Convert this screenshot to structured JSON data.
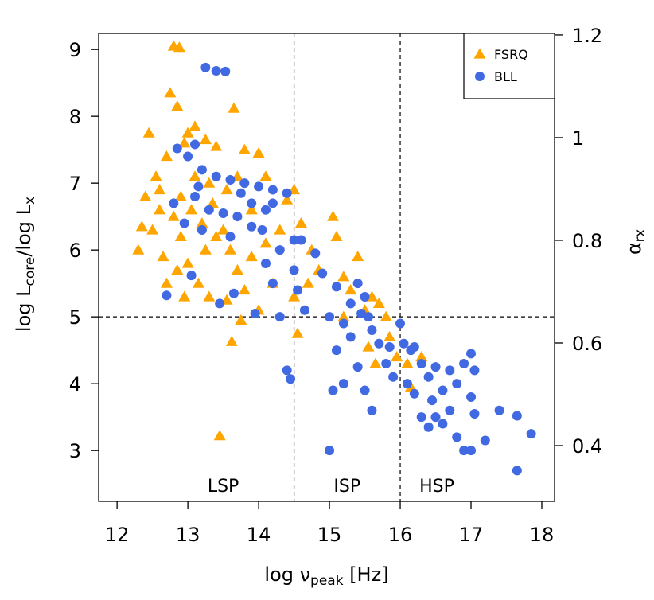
{
  "chart_data": {
    "type": "scatter",
    "xlabel": [
      "log ν",
      "peak",
      " [Hz]"
    ],
    "ylabel": [
      "log L",
      "core",
      "/log L",
      "x"
    ],
    "y2label": [
      "α",
      "rx"
    ],
    "xlim": [
      11.74,
      18.18
    ],
    "ylim": [
      2.24,
      9.24
    ],
    "y2lim": [
      0.2915,
      1.203
    ],
    "xticks": [
      12,
      13,
      14,
      15,
      16,
      17,
      18
    ],
    "yticks": [
      3,
      4,
      5,
      6,
      7,
      8,
      9
    ],
    "y2ticks": [
      0.4,
      0.6,
      0.8,
      1,
      1.2
    ],
    "vlines": [
      14.5,
      16
    ],
    "hlines": [
      5
    ],
    "annotations": [
      "LSP",
      "ISP",
      "HSP"
    ],
    "legend": "top-right",
    "series": [
      {
        "name": "FSRQ",
        "color": "#FFA500",
        "marker": "triangle",
        "x": [
          12.8,
          12.88,
          12.75,
          12.85,
          13.65,
          12.45,
          13.0,
          13.1,
          13.25,
          12.95,
          13.4,
          12.7,
          13.8,
          14.0,
          12.55,
          12.6,
          12.35,
          12.3,
          12.5,
          12.8,
          12.9,
          12.65,
          12.7,
          12.85,
          13.0,
          13.15,
          13.3,
          13.05,
          13.2,
          13.35,
          13.5,
          13.6,
          13.7,
          13.8,
          13.9,
          14.1,
          14.2,
          14.3,
          14.4,
          14.5,
          14.6,
          13.55,
          13.7,
          13.9,
          14.1,
          13.45,
          13.62,
          13.75,
          13.55,
          14.55,
          14.5,
          14.75,
          15.05,
          14.85,
          15.1,
          15.2,
          15.3,
          15.2,
          15.4,
          15.5,
          15.6,
          15.7,
          15.8,
          15.85,
          15.55,
          15.65,
          15.95,
          16.15,
          16.1,
          16.3,
          12.4,
          12.6,
          12.9,
          13.1,
          13.3,
          13.4,
          12.95,
          13.25,
          14.0,
          14.7
        ],
        "values": [
          9.05,
          9.03,
          8.35,
          8.15,
          8.12,
          7.75,
          7.75,
          7.85,
          7.65,
          7.6,
          7.55,
          7.4,
          7.5,
          7.45,
          7.1,
          6.6,
          6.35,
          6.0,
          6.3,
          6.5,
          6.2,
          5.9,
          5.5,
          5.7,
          5.8,
          5.5,
          5.3,
          6.6,
          6.4,
          6.7,
          6.3,
          6.0,
          5.7,
          5.4,
          5.9,
          6.1,
          5.5,
          6.3,
          6.75,
          6.9,
          6.4,
          6.9,
          7.1,
          6.6,
          7.1,
          3.22,
          4.63,
          4.95,
          5.25,
          4.75,
          5.3,
          6.0,
          6.5,
          5.7,
          6.2,
          5.6,
          5.4,
          5.0,
          5.9,
          5.1,
          5.3,
          5.2,
          5.0,
          4.7,
          4.55,
          4.3,
          4.4,
          3.95,
          4.3,
          4.4,
          6.8,
          6.9,
          6.8,
          7.1,
          7.0,
          6.2,
          5.3,
          6.0,
          5.1,
          5.5
        ]
      },
      {
        "name": "BLL",
        "color": "#4169E1",
        "marker": "circle",
        "x": [
          13.25,
          13.4,
          13.53,
          13.1,
          12.85,
          13.0,
          13.2,
          13.4,
          13.6,
          13.8,
          14.0,
          14.2,
          14.4,
          13.1,
          13.3,
          13.5,
          13.7,
          13.9,
          14.1,
          12.8,
          12.95,
          13.2,
          13.6,
          13.9,
          14.05,
          13.75,
          13.15,
          12.7,
          13.05,
          13.45,
          13.65,
          13.95,
          14.1,
          14.2,
          14.3,
          14.4,
          14.45,
          14.5,
          14.55,
          14.6,
          14.65,
          14.8,
          14.9,
          15.1,
          15.0,
          15.2,
          15.1,
          15.3,
          15.4,
          15.5,
          15.6,
          15.2,
          15.05,
          15.0,
          15.4,
          15.5,
          15.6,
          15.7,
          15.8,
          15.9,
          16.0,
          16.05,
          16.1,
          16.2,
          16.3,
          16.4,
          16.5,
          16.6,
          16.7,
          16.8,
          16.9,
          17.0,
          17.05,
          17.0,
          17.05,
          16.3,
          16.4,
          16.5,
          16.6,
          16.8,
          16.9,
          17.0,
          17.2,
          17.4,
          17.65,
          17.85,
          17.65,
          16.2,
          16.45,
          16.7,
          15.3,
          15.45,
          15.85,
          16.15,
          14.3,
          14.2,
          14.5,
          15.55
        ],
        "values": [
          8.73,
          8.68,
          8.67,
          7.58,
          7.52,
          7.4,
          7.2,
          7.1,
          7.05,
          7.0,
          6.95,
          6.9,
          6.85,
          6.8,
          6.6,
          6.55,
          6.5,
          6.7,
          6.6,
          6.7,
          6.4,
          6.3,
          6.2,
          6.35,
          6.3,
          6.85,
          6.95,
          5.32,
          5.62,
          5.2,
          5.35,
          5.05,
          5.8,
          5.5,
          5.0,
          4.2,
          4.07,
          5.7,
          5.4,
          6.15,
          5.1,
          5.95,
          5.65,
          5.45,
          5.0,
          4.9,
          4.5,
          5.2,
          5.5,
          5.3,
          4.8,
          4.0,
          3.9,
          3.0,
          4.25,
          3.9,
          3.6,
          4.6,
          4.3,
          4.1,
          4.9,
          4.6,
          4.0,
          4.55,
          4.3,
          4.1,
          4.25,
          3.9,
          4.2,
          4.0,
          4.3,
          4.45,
          4.2,
          3.8,
          3.55,
          3.5,
          3.35,
          3.5,
          3.4,
          3.2,
          3.0,
          3.0,
          3.15,
          3.6,
          3.52,
          3.25,
          2.7,
          3.85,
          3.75,
          3.6,
          4.7,
          5.05,
          4.55,
          4.5,
          6.0,
          6.7,
          6.15,
          5.0
        ]
      }
    ]
  }
}
